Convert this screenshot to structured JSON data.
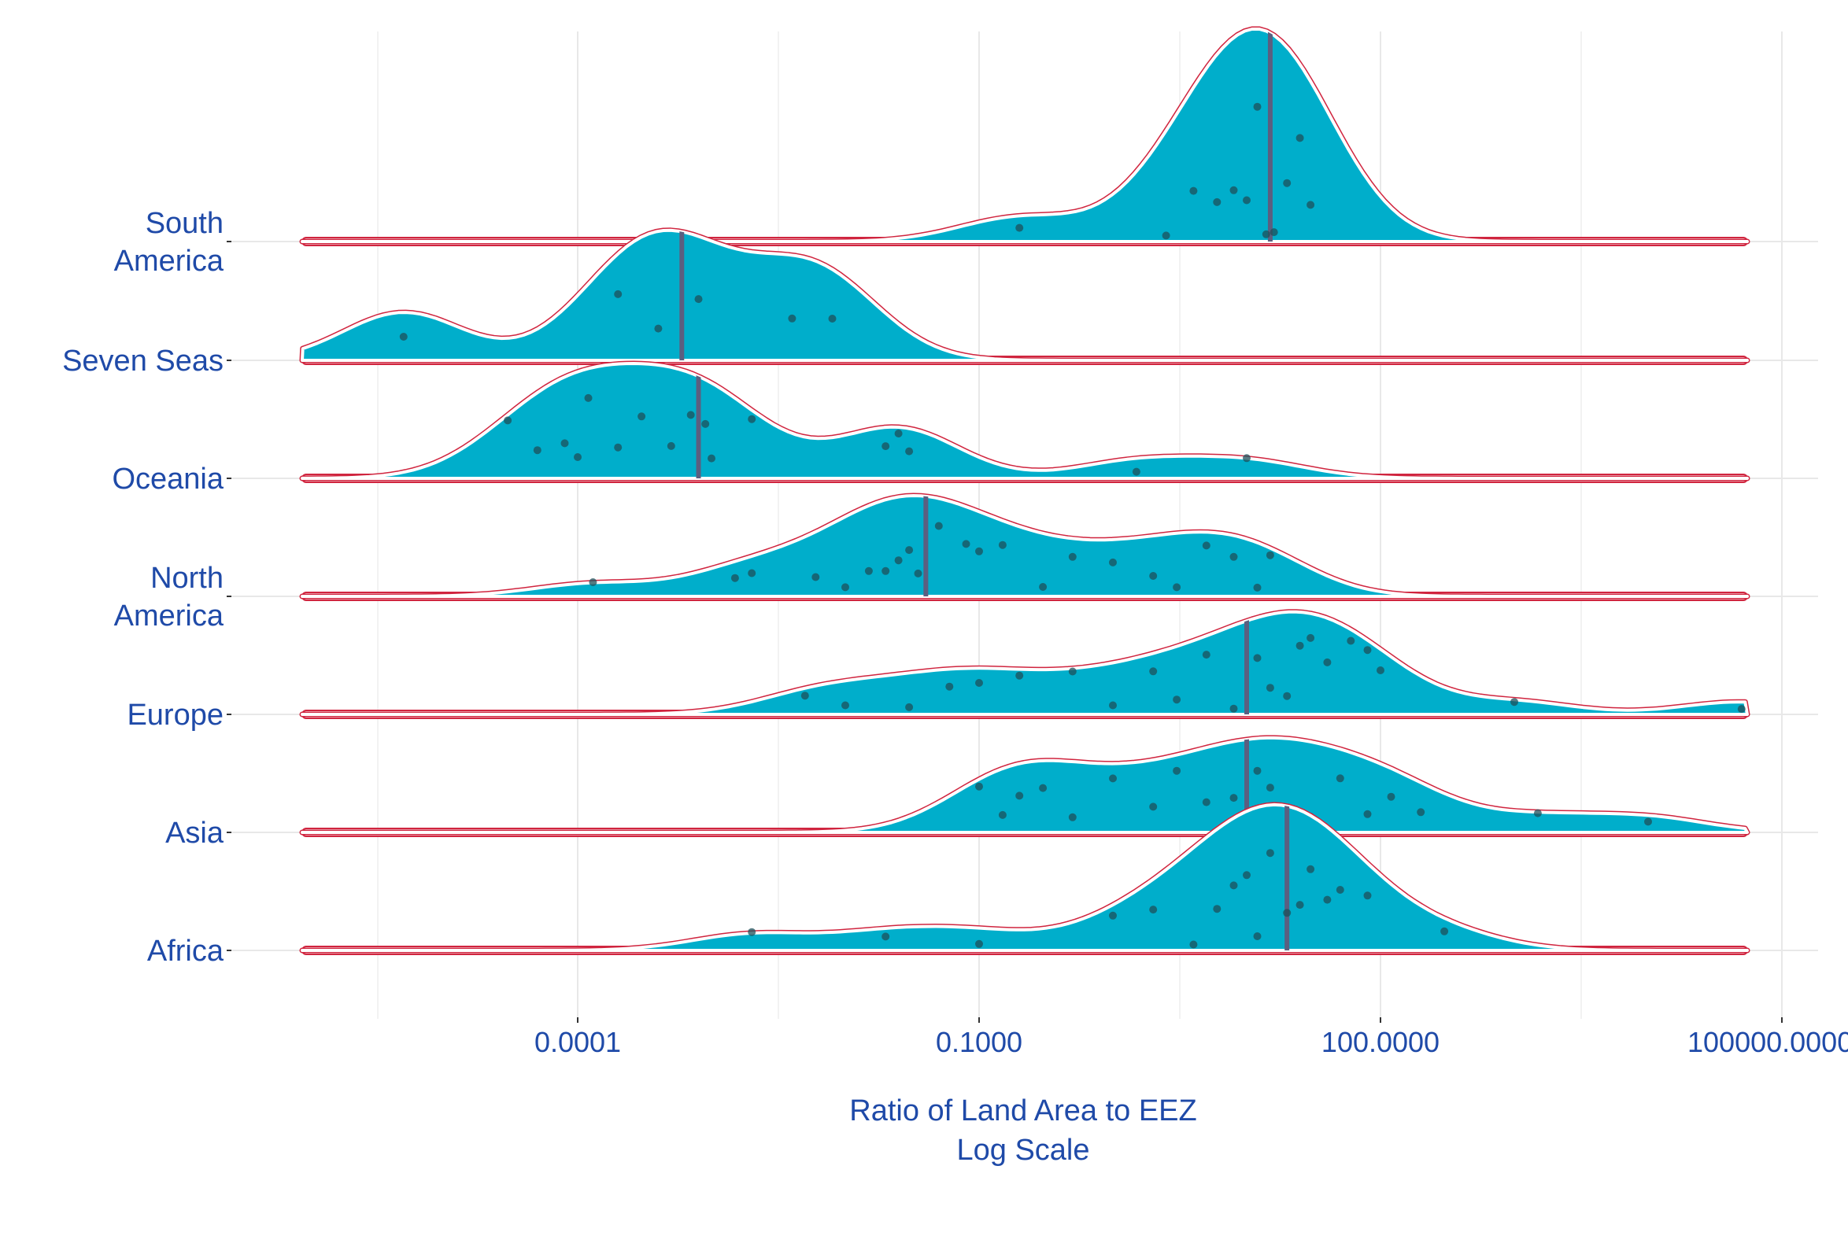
{
  "chart_data": {
    "type": "ridgeline",
    "xlabel": "Ratio of Land Area to EEZ",
    "xlabel_line2": "Log Scale",
    "x_scale": "log10",
    "xlim": [
      1e-06,
      100000
    ],
    "x_ticks": [
      0.0001,
      0.1,
      100,
      100000
    ],
    "x_tick_labels": [
      "0.0001",
      "0.1000",
      "100.0000",
      "100000.0000"
    ],
    "grid": true,
    "colors": {
      "default_fill": "#00aecb",
      "highlight_fill": "#e07a00",
      "median_line": "#5b5f80",
      "highlight_median": "#e0451a",
      "baseline_outline": "#d0253f",
      "point": "#1d4f5a",
      "label": "#1f4aa8"
    },
    "categories": [
      "South America",
      "Seven Seas",
      "Oceania",
      "North America",
      "Europe",
      "Asia",
      "Africa"
    ],
    "series": [
      {
        "name": "South America",
        "highlight": false,
        "median": 15,
        "points": [
          0.2,
          2.5,
          4,
          6,
          8,
          10,
          12,
          14,
          16,
          20,
          25,
          30
        ]
      },
      {
        "name": "Seven Seas",
        "highlight": false,
        "median": 0.0006,
        "points": [
          5e-06,
          0.0002,
          0.0004,
          0.0008,
          0.004,
          0.008
        ]
      },
      {
        "name": "Oceania",
        "highlight": false,
        "median": 0.0008,
        "points": [
          3e-05,
          5e-05,
          8e-05,
          0.0001,
          0.00012,
          0.0002,
          0.0003,
          0.0005,
          0.0007,
          0.0009,
          0.001,
          0.002,
          0.02,
          0.025,
          0.03,
          1.5,
          10
        ]
      },
      {
        "name": "North America",
        "highlight": false,
        "median": 0.04,
        "points": [
          0.00013,
          0.0015,
          0.002,
          0.006,
          0.01,
          0.015,
          0.02,
          0.025,
          0.03,
          0.035,
          0.05,
          0.08,
          0.1,
          0.15,
          0.3,
          0.5,
          1,
          2,
          3,
          5,
          8,
          12,
          15
        ]
      },
      {
        "name": "Europe",
        "highlight": false,
        "median": 10,
        "points": [
          0.005,
          0.01,
          0.03,
          0.06,
          0.1,
          0.2,
          0.5,
          1,
          2,
          3,
          5,
          8,
          12,
          15,
          20,
          25,
          30,
          40,
          60,
          80,
          100,
          1000,
          50000
        ]
      },
      {
        "name": "Asia",
        "highlight": false,
        "median": 10,
        "points": [
          0.1,
          0.15,
          0.2,
          0.3,
          0.5,
          1,
          2,
          3,
          5,
          8,
          12,
          15,
          20,
          30,
          50,
          80,
          120,
          200,
          1500,
          10000
        ]
      },
      {
        "name": "Africa",
        "highlight": false,
        "median": 20,
        "points": [
          0.002,
          0.02,
          0.1,
          1,
          2,
          4,
          6,
          8,
          10,
          12,
          15,
          20,
          25,
          30,
          40,
          50,
          80,
          300
        ]
      }
    ]
  }
}
